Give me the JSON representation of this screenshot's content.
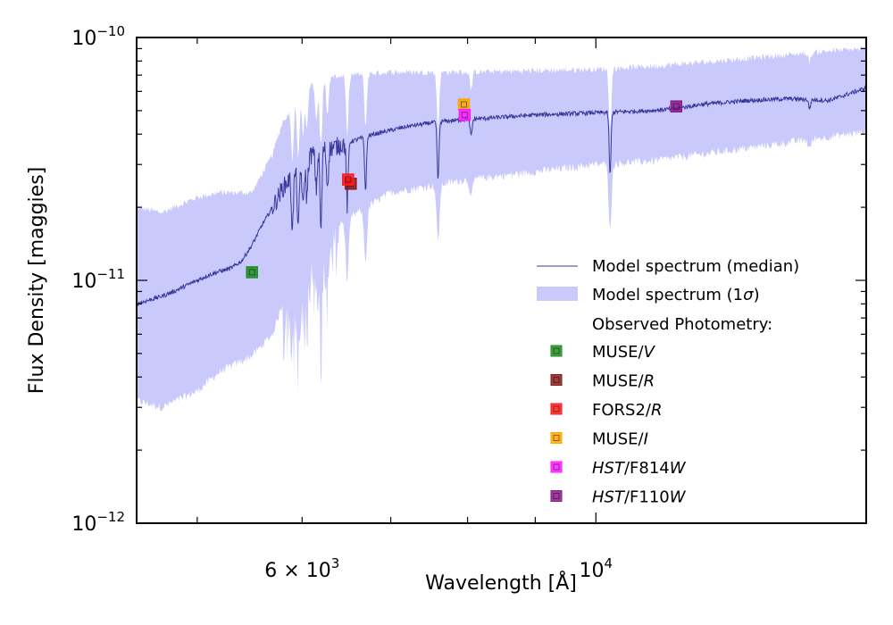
{
  "chart_data": {
    "type": "line",
    "title": "",
    "xlabel": "Wavelength [Å]",
    "ylabel": "Flux Density [maggies]",
    "xscale": "log",
    "yscale": "log",
    "xlim": [
      4500,
      16000
    ],
    "ylim": [
      1e-12,
      1e-10
    ],
    "x_tick_labels": [
      {
        "value": 6000,
        "base": "6 × 10",
        "exp": "3"
      },
      {
        "value": 10000,
        "base": "10",
        "exp": "4"
      }
    ],
    "y_tick_labels": [
      {
        "value": 1e-12,
        "base": "10",
        "exp": "−12"
      },
      {
        "value": 1e-11,
        "base": "10",
        "exp": "−11"
      },
      {
        "value": 1e-10,
        "base": "10",
        "exp": "−10"
      }
    ],
    "median_spectrum": {
      "name": "Model spectrum (median)",
      "color": "#3a3a9e",
      "x": [
        4500,
        4600,
        4700,
        4800,
        4900,
        5000,
        5100,
        5200,
        5300,
        5400,
        5500,
        5600,
        5700,
        5800,
        5900,
        6000,
        6100,
        6200,
        6300,
        6400,
        6500,
        6600,
        6700,
        6800,
        7000,
        7200,
        7400,
        7600,
        7800,
        8000,
        8500,
        9000,
        9500,
        10000,
        10500,
        11000,
        11500,
        12000,
        13000,
        14000,
        15000,
        16000
      ],
      "y": [
        8e-12,
        8.3e-12,
        8.6e-12,
        9e-12,
        9.5e-12,
        1e-11,
        1.05e-11,
        1.09e-11,
        1.12e-11,
        1.2e-11,
        1.4e-11,
        1.7e-11,
        2e-11,
        2.4e-11,
        2.7e-11,
        3e-11,
        3.3e-11,
        3.5e-11,
        3.5e-11,
        3.6e-11,
        3.7e-11,
        3.8e-11,
        3.9e-11,
        4e-11,
        4.15e-11,
        4.3e-11,
        4.4e-11,
        4.5e-11,
        4.55e-11,
        4.6e-11,
        4.7e-11,
        4.8e-11,
        4.85e-11,
        4.9e-11,
        4.95e-11,
        5e-11,
        5.1e-11,
        5.3e-11,
        5.5e-11,
        5.6e-11,
        5.5e-11,
        6.2e-11
      ]
    },
    "absorption_lines": [
      {
        "x": 5900,
        "depth": 0.4
      },
      {
        "x": 5960,
        "depth": 0.45
      },
      {
        "x": 6010,
        "depth": 0.35
      },
      {
        "x": 6050,
        "depth": 0.3
      },
      {
        "x": 6150,
        "depth": 0.3
      },
      {
        "x": 6200,
        "depth": 0.55
      },
      {
        "x": 6270,
        "depth": 0.3
      },
      {
        "x": 6490,
        "depth": 0.45
      },
      {
        "x": 6700,
        "depth": 0.4
      },
      {
        "x": 7600,
        "depth": 0.42
      },
      {
        "x": 8050,
        "depth": 0.15
      },
      {
        "x": 10250,
        "depth": 0.45
      },
      {
        "x": 14500,
        "depth": 0.08
      }
    ],
    "band": {
      "name": "Model spectrum (1σ)",
      "color": "#c9c9fb",
      "x": [
        4500,
        4700,
        5000,
        5200,
        5500,
        5700,
        5800,
        6000,
        6200,
        6500,
        7000,
        8000,
        9000,
        10000,
        11000,
        12000,
        13000,
        14000,
        15000,
        16000
      ],
      "upper": [
        2e-11,
        1.9e-11,
        2.2e-11,
        2.3e-11,
        2.3e-11,
        3.3e-11,
        4.5e-11,
        6e-11,
        6.8e-11,
        7e-11,
        7.2e-11,
        7.2e-11,
        7.3e-11,
        7.4e-11,
        7.6e-11,
        7.9e-11,
        8.2e-11,
        8.5e-11,
        8.8e-11,
        9e-11
      ],
      "lower": [
        3.2e-12,
        3e-12,
        3.5e-12,
        4.2e-12,
        4.9e-12,
        6e-12,
        8e-12,
        1.2e-11,
        1.5e-11,
        1.8e-11,
        2.3e-11,
        2.6e-11,
        2.8e-11,
        3e-11,
        3.1e-11,
        3.3e-11,
        3.5e-11,
        3.7e-11,
        3.9e-11,
        4.1e-11
      ]
    },
    "photometry": [
      {
        "label": "MUSE/",
        "italic": "V",
        "x": 5500,
        "y": 1.08e-11,
        "color": "#1f8f1f"
      },
      {
        "label": "MUSE/",
        "italic": "R",
        "x": 6530,
        "y": 2.5e-11,
        "color": "#8b1a1a"
      },
      {
        "label": "FORS2/",
        "italic": "R",
        "x": 6500,
        "y": 2.6e-11,
        "color": "#ff1a1a"
      },
      {
        "label": "MUSE/",
        "italic": "I",
        "x": 7950,
        "y": 5.3e-11,
        "color": "#ffa500"
      },
      {
        "label": "",
        "italic": "HST",
        "suffix_plain": "/F",
        "suffix_num": "814",
        "suffix_italic": "W",
        "x": 7960,
        "y": 4.8e-11,
        "color": "#ff1aff"
      },
      {
        "label": "",
        "italic": "HST",
        "suffix_plain": "/F",
        "suffix_num": "110",
        "suffix_italic": "W",
        "x": 11500,
        "y": 5.2e-11,
        "color": "#8b1a8b"
      }
    ],
    "legend": {
      "position": "lower-right",
      "median_label": "Model spectrum (median)",
      "band_label_prefix": "Model spectrum (1",
      "band_label_sigma": "σ",
      "band_label_suffix": ")",
      "photometry_header": "Observed Photometry:"
    }
  }
}
